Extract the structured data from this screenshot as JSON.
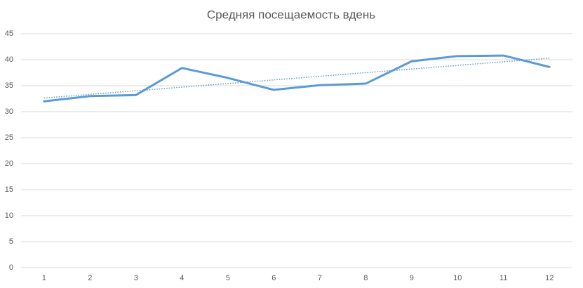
{
  "chart_data": {
    "type": "line",
    "title": "Средняя посещаемость вдень",
    "categories": [
      "1",
      "2",
      "3",
      "4",
      "5",
      "6",
      "7",
      "8",
      "9",
      "10",
      "11",
      "12"
    ],
    "series": [
      {
        "color": "#5b9bd5",
        "values": [
          32.0,
          33.0,
          33.2,
          38.4,
          36.5,
          34.2,
          35.1,
          35.4,
          39.7,
          40.7,
          40.8,
          38.6
        ]
      }
    ],
    "trendline": {
      "type": "linear",
      "color": "#5b9bd5",
      "dash": "dotted"
    },
    "ylim": [
      0,
      45
    ],
    "yticks": [
      0,
      5,
      10,
      15,
      20,
      25,
      30,
      35,
      40,
      45
    ],
    "grid": true
  }
}
